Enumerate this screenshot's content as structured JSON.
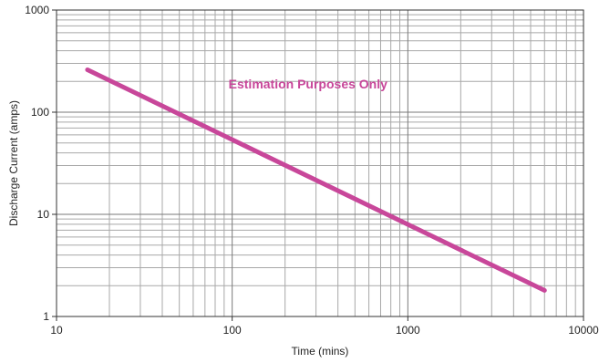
{
  "chart_data": {
    "type": "line",
    "title": "",
    "xlabel": "Time (mins)",
    "ylabel": "Discharge Current (amps)",
    "x_scale": "log",
    "y_scale": "log",
    "xlim": [
      10,
      10000
    ],
    "ylim": [
      1,
      1000
    ],
    "x_ticks": [
      10,
      100,
      1000,
      10000
    ],
    "y_ticks": [
      1,
      10,
      100,
      1000
    ],
    "x_tick_labels": [
      "10",
      "100",
      "1000",
      "10000"
    ],
    "y_tick_labels": [
      "1",
      "10",
      "100",
      "1000"
    ],
    "grid": true,
    "series": [
      {
        "color": "#c8479a",
        "x": [
          15,
          6000
        ],
        "y": [
          260,
          1.8
        ]
      }
    ],
    "annotations": [
      {
        "text": "Estimation Purposes Only",
        "x": 270,
        "y": 170,
        "color": "#c8479a"
      }
    ]
  }
}
